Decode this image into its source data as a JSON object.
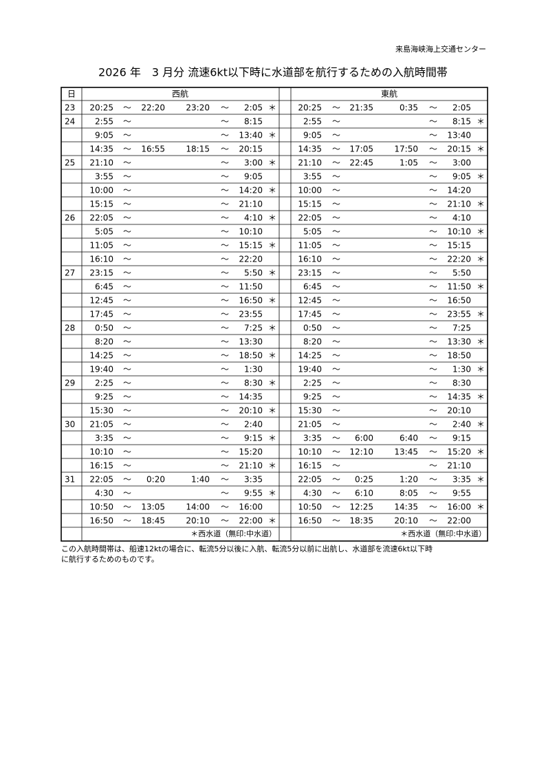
{
  "header": {
    "organization": "来島海峡海上交通センター",
    "title": "2026 年　3 月分 流速6kt以下時に水道部を航行するための入航時間帯"
  },
  "table": {
    "columns": [
      "日",
      "西航",
      "東航"
    ],
    "separator": "～",
    "rows": [
      [
        "23",
        "20:25",
        "22:20",
        "23:20",
        "2:05",
        "＊",
        "20:25",
        "21:35",
        "0:35",
        "2:05",
        null
      ],
      [
        "24",
        "2:55",
        null,
        null,
        "8:15",
        null,
        "2:55",
        null,
        null,
        "8:15",
        "＊"
      ],
      [
        null,
        "9:05",
        null,
        null,
        "13:40",
        "＊",
        "9:05",
        null,
        null,
        "13:40",
        null
      ],
      [
        null,
        "14:35",
        "16:55",
        "18:15",
        "20:15",
        null,
        "14:35",
        "17:05",
        "17:50",
        "20:15",
        "＊"
      ],
      [
        "25",
        "21:10",
        null,
        null,
        "3:00",
        "＊",
        "21:10",
        "22:45",
        "1:05",
        "3:00",
        null
      ],
      [
        null,
        "3:55",
        null,
        null,
        "9:05",
        null,
        "3:55",
        null,
        null,
        "9:05",
        "＊"
      ],
      [
        null,
        "10:00",
        null,
        null,
        "14:20",
        "＊",
        "10:00",
        null,
        null,
        "14:20",
        null
      ],
      [
        null,
        "15:15",
        null,
        null,
        "21:10",
        null,
        "15:15",
        null,
        null,
        "21:10",
        "＊"
      ],
      [
        "26",
        "22:05",
        null,
        null,
        "4:10",
        "＊",
        "22:05",
        null,
        null,
        "4:10",
        null
      ],
      [
        null,
        "5:05",
        null,
        null,
        "10:10",
        null,
        "5:05",
        null,
        null,
        "10:10",
        "＊"
      ],
      [
        null,
        "11:05",
        null,
        null,
        "15:15",
        "＊",
        "11:05",
        null,
        null,
        "15:15",
        null
      ],
      [
        null,
        "16:10",
        null,
        null,
        "22:20",
        null,
        "16:10",
        null,
        null,
        "22:20",
        "＊"
      ],
      [
        "27",
        "23:15",
        null,
        null,
        "5:50",
        "＊",
        "23:15",
        null,
        null,
        "5:50",
        null
      ],
      [
        null,
        "6:45",
        null,
        null,
        "11:50",
        null,
        "6:45",
        null,
        null,
        "11:50",
        "＊"
      ],
      [
        null,
        "12:45",
        null,
        null,
        "16:50",
        "＊",
        "12:45",
        null,
        null,
        "16:50",
        null
      ],
      [
        null,
        "17:45",
        null,
        null,
        "23:55",
        null,
        "17:45",
        null,
        null,
        "23:55",
        "＊"
      ],
      [
        "28",
        "0:50",
        null,
        null,
        "7:25",
        "＊",
        "0:50",
        null,
        null,
        "7:25",
        null
      ],
      [
        null,
        "8:20",
        null,
        null,
        "13:30",
        null,
        "8:20",
        null,
        null,
        "13:30",
        "＊"
      ],
      [
        null,
        "14:25",
        null,
        null,
        "18:50",
        "＊",
        "14:25",
        null,
        null,
        "18:50",
        null
      ],
      [
        null,
        "19:40",
        null,
        null,
        "1:30",
        null,
        "19:40",
        null,
        null,
        "1:30",
        "＊"
      ],
      [
        "29",
        "2:25",
        null,
        null,
        "8:30",
        "＊",
        "2:25",
        null,
        null,
        "8:30",
        null
      ],
      [
        null,
        "9:25",
        null,
        null,
        "14:35",
        null,
        "9:25",
        null,
        null,
        "14:35",
        "＊"
      ],
      [
        null,
        "15:30",
        null,
        null,
        "20:10",
        "＊",
        "15:30",
        null,
        null,
        "20:10",
        null
      ],
      [
        "30",
        "21:05",
        null,
        null,
        "2:40",
        null,
        "21:05",
        null,
        null,
        "2:40",
        "＊"
      ],
      [
        null,
        "3:35",
        null,
        null,
        "9:15",
        "＊",
        "3:35",
        "6:00",
        "6:40",
        "9:15",
        null
      ],
      [
        null,
        "10:10",
        null,
        null,
        "15:20",
        null,
        "10:10",
        "12:10",
        "13:45",
        "15:20",
        "＊"
      ],
      [
        null,
        "16:15",
        null,
        null,
        "21:10",
        "＊",
        "16:15",
        null,
        null,
        "21:10",
        null
      ],
      [
        "31",
        "22:05",
        "0:20",
        "1:40",
        "3:35",
        null,
        "22:05",
        "0:25",
        "1:20",
        "3:35",
        "＊"
      ],
      [
        null,
        "4:30",
        null,
        null,
        "9:55",
        "＊",
        "4:30",
        "6:10",
        "8:05",
        "9:55",
        null
      ],
      [
        null,
        "10:50",
        "13:05",
        "14:00",
        "16:00",
        null,
        "10:50",
        "12:25",
        "14:35",
        "16:00",
        "＊"
      ],
      [
        null,
        "16:50",
        "18:45",
        "20:10",
        "22:00",
        "＊",
        "16:50",
        "18:35",
        "20:10",
        "22:00",
        null
      ]
    ]
  },
  "legend": {
    "west": "＊西水道（無印:中水道）",
    "east": "＊西水道（無印:中水道）"
  },
  "note": [
    "この入航時間帯は、船速12ktの場合に、転流5分以後に入航、転流5分以前に出航し、水道部を流速6kt以下時",
    "に航行するためのものです。"
  ]
}
